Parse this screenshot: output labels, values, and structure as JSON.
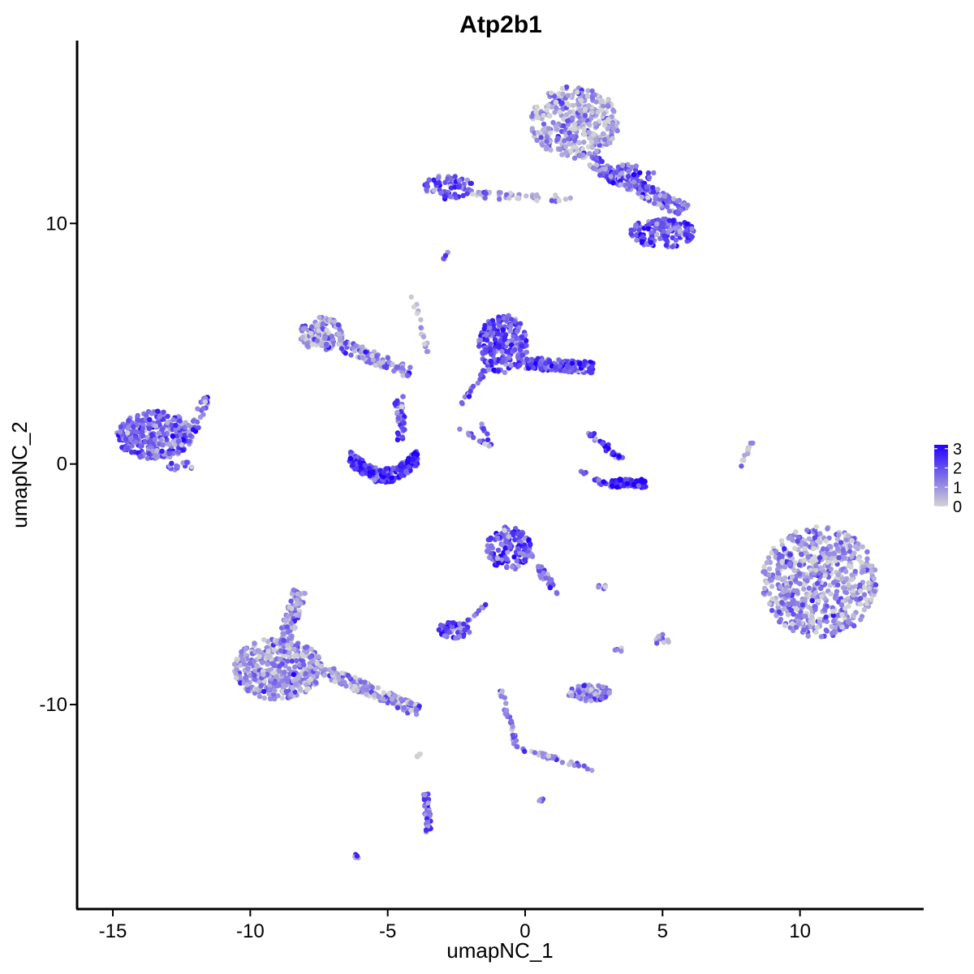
{
  "chart_data": {
    "type": "scatter",
    "title": "Atp2b1",
    "xlabel": "umapNC_1",
    "ylabel": "umapNC_2",
    "xlim": [
      -16.3,
      14.5
    ],
    "ylim": [
      -18.5,
      17.6
    ],
    "x_ticks": [
      {
        "value": -15,
        "label": "-15"
      },
      {
        "value": -10,
        "label": "-10"
      },
      {
        "value": -5,
        "label": "-5"
      },
      {
        "value": 0,
        "label": "0"
      },
      {
        "value": 5,
        "label": "5"
      },
      {
        "value": 10,
        "label": "10"
      }
    ],
    "y_ticks": [
      {
        "value": 10,
        "label": "10"
      },
      {
        "value": 0,
        "label": "0"
      },
      {
        "value": -10,
        "label": "-10"
      }
    ],
    "grid": false,
    "color_scale": {
      "low": "#d3d3d3",
      "high": "#2200ff",
      "min": 0,
      "max": 3.2,
      "breaks": [
        {
          "value": 3,
          "label": "3"
        },
        {
          "value": 2,
          "label": "2"
        },
        {
          "value": 1,
          "label": "1"
        },
        {
          "value": 0,
          "label": "0"
        }
      ],
      "legend_position": "right"
    },
    "clusters": [
      {
        "id": "c1",
        "shape": "ellipse",
        "cx": 1.8,
        "cy": 14.2,
        "rx": 1.6,
        "ry": 1.5,
        "n": 380,
        "expr_mean": 0.7
      },
      {
        "id": "c2",
        "shape": "line",
        "x0": 2.3,
        "y0": 12.6,
        "x1": 5.8,
        "y1": 10.5,
        "width": 0.6,
        "n": 170,
        "expr_mean": 1.6
      },
      {
        "id": "c3",
        "shape": "ellipse",
        "cx": 5.0,
        "cy": 9.6,
        "rx": 1.2,
        "ry": 0.6,
        "n": 150,
        "expr_mean": 1.9
      },
      {
        "id": "c4",
        "shape": "ellipse",
        "cx": 3.8,
        "cy": 12.0,
        "rx": 0.9,
        "ry": 0.5,
        "n": 50,
        "expr_mean": 1.7
      },
      {
        "id": "c5",
        "shape": "ellipse",
        "cx": -2.8,
        "cy": 11.5,
        "rx": 0.9,
        "ry": 0.5,
        "n": 70,
        "expr_mean": 1.8
      },
      {
        "id": "c6",
        "shape": "line",
        "x0": -2.0,
        "y0": 11.2,
        "x1": 1.7,
        "y1": 11.0,
        "width": 0.3,
        "n": 45,
        "expr_mean": 0.7
      },
      {
        "id": "c7",
        "shape": "ellipse",
        "cx": -13.5,
        "cy": 1.2,
        "rx": 1.4,
        "ry": 1.0,
        "n": 320,
        "expr_mean": 1.6
      },
      {
        "id": "c8",
        "shape": "line",
        "x0": -12.2,
        "y0": 1.0,
        "x1": -11.6,
        "y1": 2.8,
        "width": 0.3,
        "n": 30,
        "expr_mean": 1.5
      },
      {
        "id": "c9",
        "shape": "ellipse",
        "cx": -12.5,
        "cy": -0.1,
        "rx": 0.5,
        "ry": 0.2,
        "n": 15,
        "expr_mean": 1.7
      },
      {
        "id": "c10",
        "shape": "ellipse",
        "cx": -7.4,
        "cy": 5.4,
        "rx": 0.8,
        "ry": 0.7,
        "n": 110,
        "expr_mean": 1.0
      },
      {
        "id": "c11",
        "shape": "line",
        "x0": -6.8,
        "y0": 5.0,
        "x1": -4.2,
        "y1": 3.8,
        "width": 0.5,
        "n": 90,
        "expr_mean": 1.1
      },
      {
        "id": "c12",
        "shape": "line",
        "x0": -6.4,
        "y0": 0.3,
        "x1": -3.9,
        "y1": 0.3,
        "width": 0.6,
        "n": 260,
        "expr_mean": 2.4,
        "bow": -0.8
      },
      {
        "id": "c13",
        "shape": "line",
        "x0": -4.5,
        "y0": 1.0,
        "x1": -4.6,
        "y1": 2.8,
        "width": 0.35,
        "n": 40,
        "expr_mean": 2.0
      },
      {
        "id": "c14",
        "shape": "line",
        "x0": -4.2,
        "y0": 7.4,
        "x1": -3.5,
        "y1": 4.5,
        "width": 0.15,
        "n": 18,
        "expr_mean": 0.6
      },
      {
        "id": "c15",
        "shape": "ellipse",
        "cx": -0.8,
        "cy": 5.0,
        "rx": 0.9,
        "ry": 1.2,
        "n": 220,
        "expr_mean": 2.0
      },
      {
        "id": "c16",
        "shape": "line",
        "x0": 0.0,
        "y0": 4.2,
        "x1": 2.5,
        "y1": 4.0,
        "width": 0.5,
        "n": 160,
        "expr_mean": 1.9
      },
      {
        "id": "c17",
        "shape": "line",
        "x0": -2.3,
        "y0": 2.5,
        "x1": -1.2,
        "y1": 4.3,
        "width": 0.2,
        "n": 22,
        "expr_mean": 1.5
      },
      {
        "id": "c18",
        "shape": "line",
        "x0": 3.1,
        "y0": -0.8,
        "x1": 4.4,
        "y1": -0.8,
        "width": 0.35,
        "n": 80,
        "expr_mean": 2.5
      },
      {
        "id": "c19",
        "shape": "line",
        "x0": 2.3,
        "y0": 1.3,
        "x1": 3.5,
        "y1": 0.2,
        "width": 0.25,
        "n": 30,
        "expr_mean": 2.2
      },
      {
        "id": "c20",
        "shape": "line",
        "x0": 2.0,
        "y0": -0.3,
        "x1": 3.0,
        "y1": -0.9,
        "width": 0.15,
        "n": 14,
        "expr_mean": 2.0
      },
      {
        "id": "c21",
        "shape": "line",
        "x0": 7.8,
        "y0": -0.2,
        "x1": 8.3,
        "y1": 1.0,
        "width": 0.1,
        "n": 12,
        "expr_mean": 0.3
      },
      {
        "id": "c22",
        "shape": "line",
        "x0": -1.6,
        "y0": 1.7,
        "x1": -1.2,
        "y1": 0.7,
        "width": 0.1,
        "n": 8,
        "expr_mean": 1.4
      },
      {
        "id": "c23",
        "shape": "line",
        "x0": -2.4,
        "y0": 1.5,
        "x1": -1.2,
        "y1": 0.7,
        "width": 0.1,
        "n": 10,
        "expr_mean": 1.4
      },
      {
        "id": "c24",
        "shape": "ellipse",
        "cx": 10.7,
        "cy": -4.9,
        "rx": 2.1,
        "ry": 2.3,
        "n": 650,
        "expr_mean": 0.9
      },
      {
        "id": "c25",
        "shape": "ellipse",
        "cx": -0.6,
        "cy": -3.5,
        "rx": 0.8,
        "ry": 0.9,
        "n": 140,
        "expr_mean": 1.9
      },
      {
        "id": "c26",
        "shape": "line",
        "x0": 0.0,
        "y0": -3.6,
        "x1": 1.2,
        "y1": -5.4,
        "width": 0.3,
        "n": 40,
        "expr_mean": 1.6
      },
      {
        "id": "c27",
        "shape": "ellipse",
        "cx": -2.6,
        "cy": -6.9,
        "rx": 0.6,
        "ry": 0.35,
        "n": 60,
        "expr_mean": 1.8
      },
      {
        "id": "c28",
        "shape": "line",
        "x0": -2.4,
        "y0": -6.9,
        "x1": -1.4,
        "y1": -5.8,
        "width": 0.1,
        "n": 10,
        "expr_mean": 1.7
      },
      {
        "id": "c29",
        "shape": "ellipse",
        "cx": -9.0,
        "cy": -8.5,
        "rx": 1.6,
        "ry": 1.3,
        "n": 420,
        "expr_mean": 0.9
      },
      {
        "id": "c30",
        "shape": "line",
        "x0": -8.8,
        "y0": -7.5,
        "x1": -8.2,
        "y1": -5.3,
        "width": 0.5,
        "n": 110,
        "expr_mean": 0.9
      },
      {
        "id": "c31",
        "shape": "line",
        "x0": -7.3,
        "y0": -8.6,
        "x1": -3.8,
        "y1": -10.3,
        "width": 0.5,
        "n": 150,
        "expr_mean": 0.8
      },
      {
        "id": "c32",
        "shape": "ellipse",
        "cx": 2.3,
        "cy": -9.5,
        "rx": 0.8,
        "ry": 0.35,
        "n": 70,
        "expr_mean": 1.1
      },
      {
        "id": "c33",
        "shape": "line",
        "x0": -0.9,
        "y0": -9.3,
        "x1": -0.3,
        "y1": -11.8,
        "width": 0.15,
        "n": 30,
        "expr_mean": 1.2
      },
      {
        "id": "c34",
        "shape": "line",
        "x0": -0.3,
        "y0": -11.8,
        "x1": 2.5,
        "y1": -12.7,
        "width": 0.15,
        "n": 30,
        "expr_mean": 0.9
      },
      {
        "id": "c35",
        "shape": "line",
        "x0": -3.6,
        "y0": -13.7,
        "x1": -3.5,
        "y1": -15.3,
        "width": 0.2,
        "n": 40,
        "expr_mean": 1.9
      },
      {
        "id": "c36",
        "shape": "ellipse",
        "cx": 5.0,
        "cy": -7.3,
        "rx": 0.25,
        "ry": 0.3,
        "n": 12,
        "expr_mean": 0.9
      },
      {
        "id": "c37",
        "shape": "ellipse",
        "cx": 3.4,
        "cy": -7.7,
        "rx": 0.15,
        "ry": 0.15,
        "n": 5,
        "expr_mean": 1.0
      },
      {
        "id": "c38",
        "shape": "ellipse",
        "cx": 2.8,
        "cy": -5.1,
        "rx": 0.15,
        "ry": 0.1,
        "n": 5,
        "expr_mean": 1.4
      },
      {
        "id": "c39",
        "shape": "line",
        "x0": -3.0,
        "y0": 8.5,
        "x1": -2.8,
        "y1": 8.8,
        "width": 0.1,
        "n": 6,
        "expr_mean": 0.9
      },
      {
        "id": "c40",
        "shape": "ellipse",
        "cx": -6.1,
        "cy": -16.3,
        "rx": 0.12,
        "ry": 0.1,
        "n": 5,
        "expr_mean": 1.6
      },
      {
        "id": "c41",
        "shape": "ellipse",
        "cx": 0.6,
        "cy": -14.0,
        "rx": 0.1,
        "ry": 0.1,
        "n": 4,
        "expr_mean": 1.2
      },
      {
        "id": "c42",
        "shape": "ellipse",
        "cx": -3.9,
        "cy": -12.0,
        "rx": 0.1,
        "ry": 0.3,
        "n": 5,
        "expr_mean": 0.5
      }
    ]
  }
}
